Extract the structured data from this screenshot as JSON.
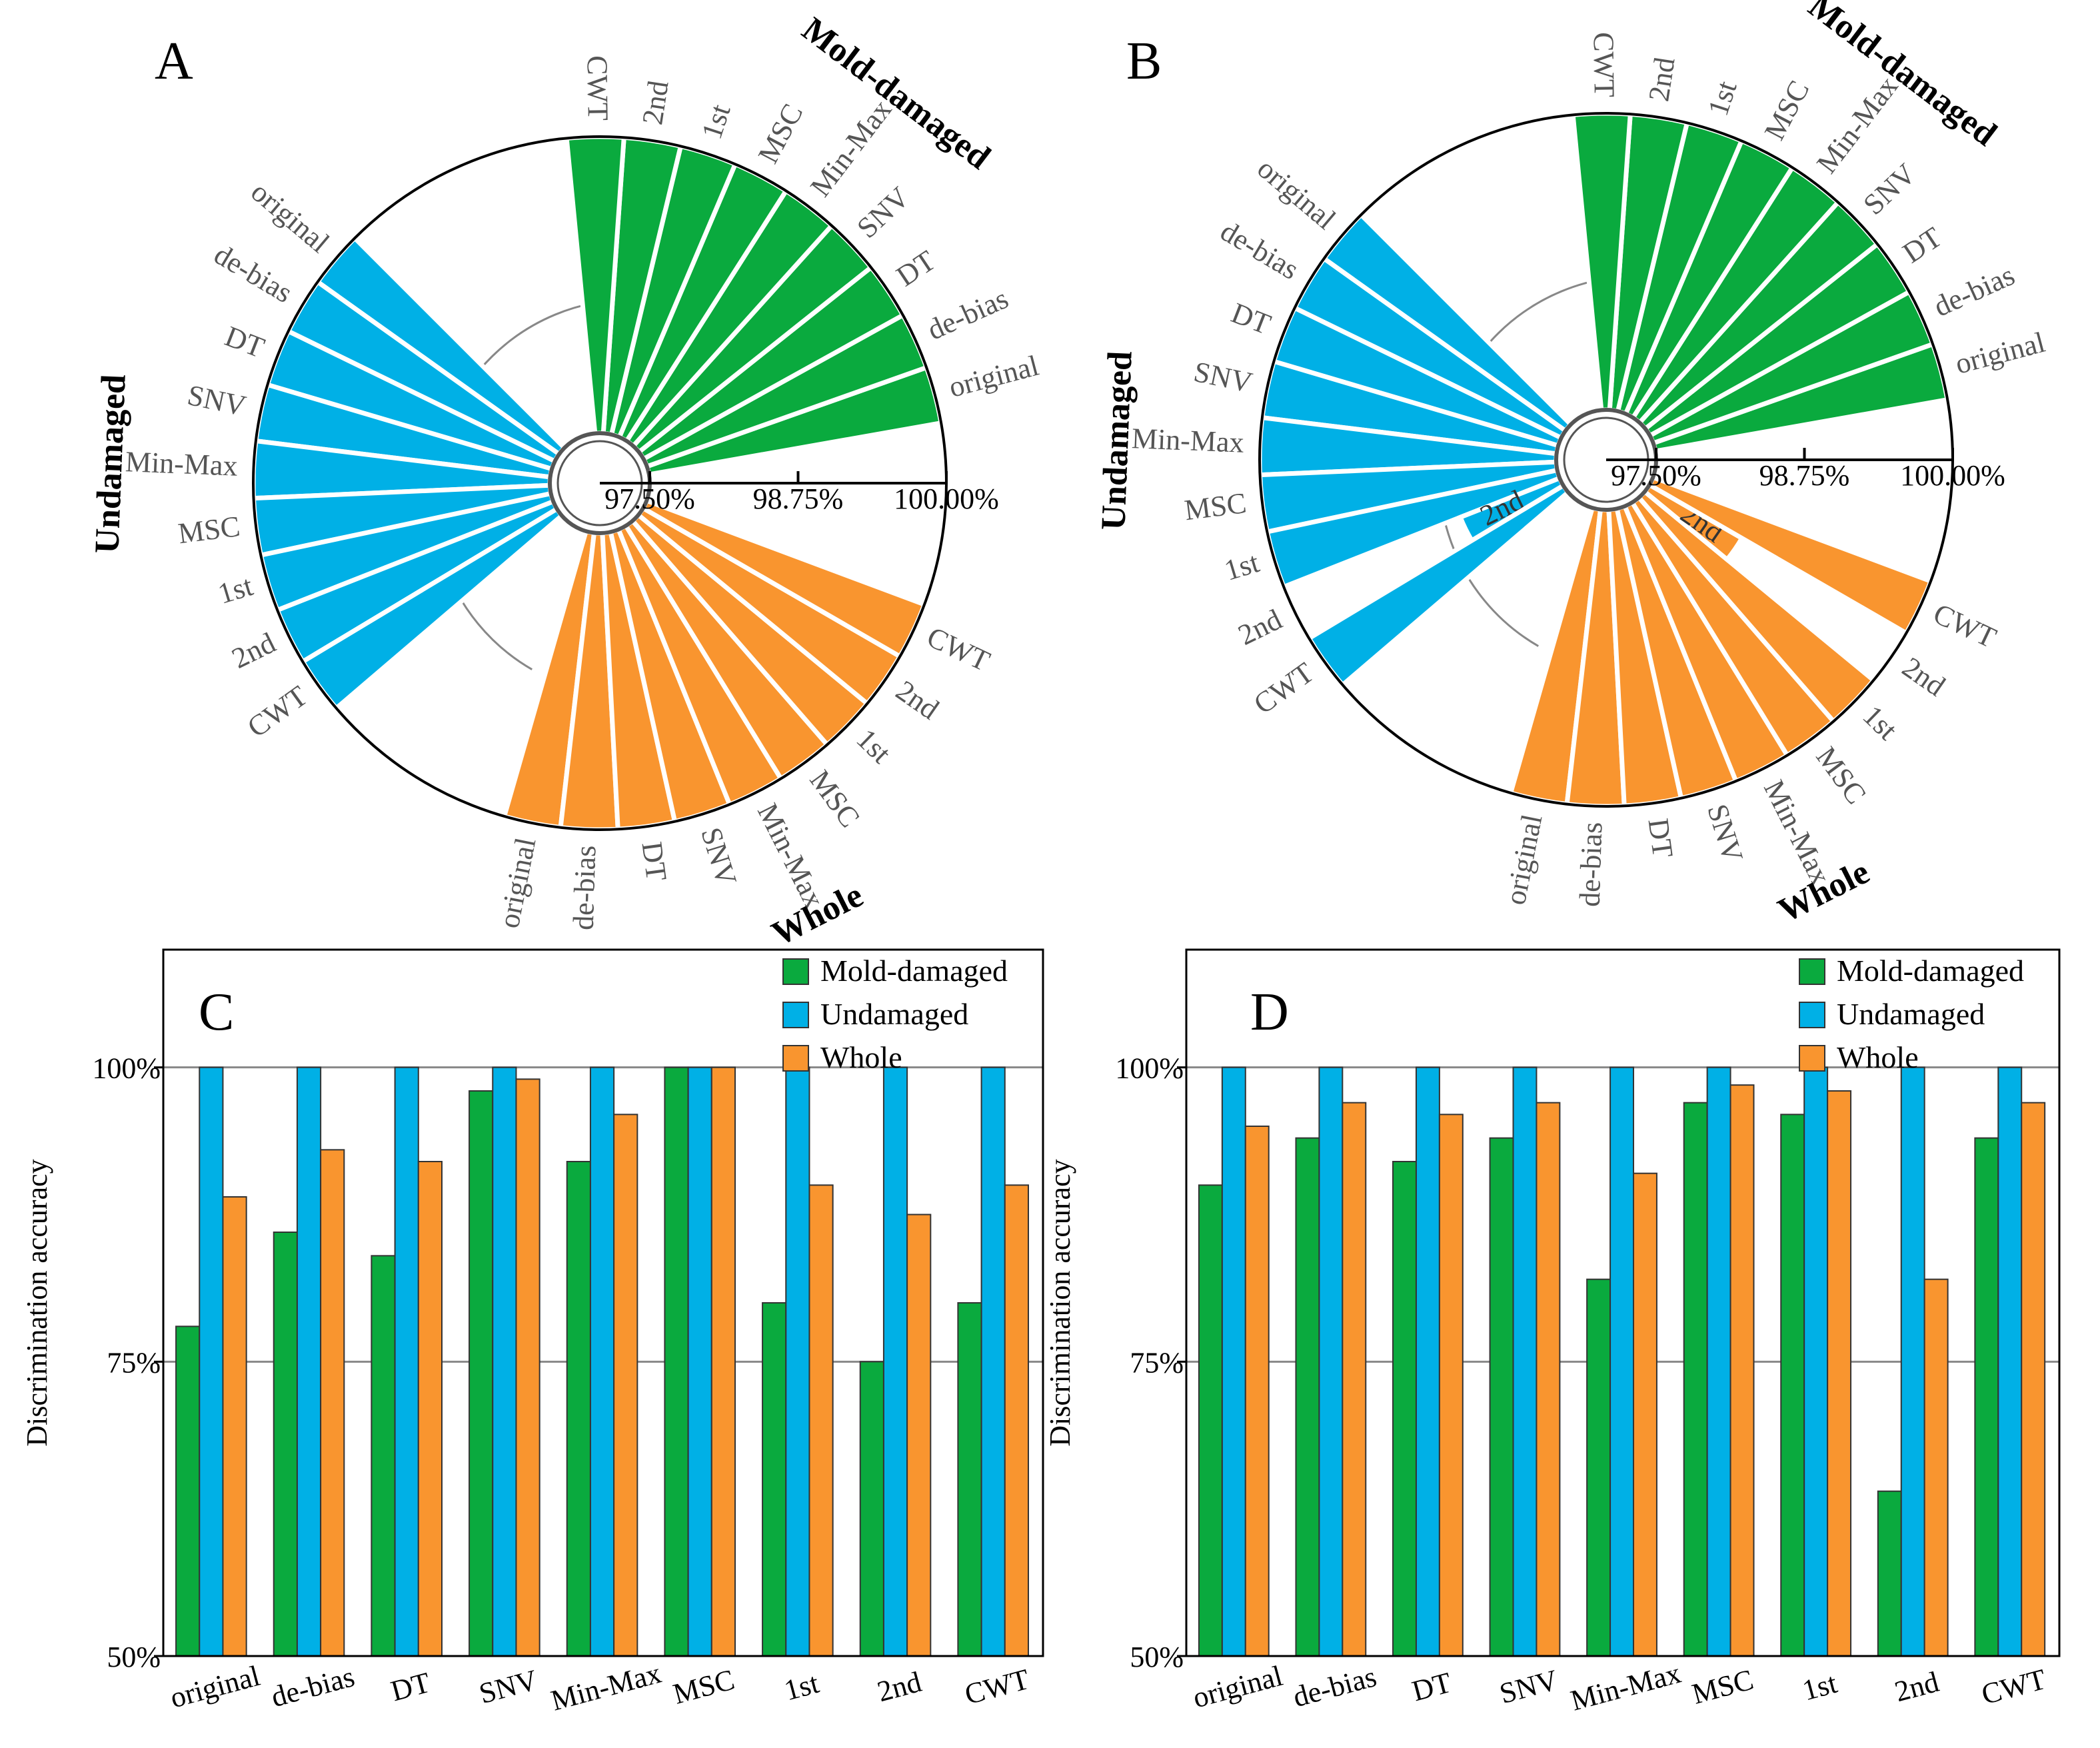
{
  "figure": {
    "colors": {
      "mold": "#0aaa3e",
      "undamaged": "#00b0e6",
      "whole": "#f9952f"
    }
  },
  "chart_data": [
    {
      "panel": "A",
      "type": "radial-bar",
      "groups": [
        "Mold-damaged",
        "Undamaged",
        "Whole"
      ],
      "categories": [
        "original",
        "de-bias",
        "DT",
        "SNV",
        "Min-Max",
        "MSC",
        "1st",
        "2nd",
        "CWT"
      ],
      "radial_axis": {
        "min": 97.5,
        "max": 100,
        "ticks": [
          "97.50%",
          "98.75%",
          "100.00%"
        ]
      },
      "series": [
        {
          "name": "Mold-damaged",
          "values": [
            100,
            100,
            100,
            100,
            100,
            100,
            100,
            100,
            100
          ]
        },
        {
          "name": "Undamaged",
          "values": [
            100,
            100,
            100,
            100,
            100,
            100,
            100,
            100,
            100
          ]
        },
        {
          "name": "Whole",
          "values": [
            100,
            100,
            100,
            100,
            100,
            100,
            100,
            100,
            100
          ]
        }
      ]
    },
    {
      "panel": "B",
      "type": "radial-bar",
      "groups": [
        "Mold-damaged",
        "Undamaged",
        "Whole"
      ],
      "categories": [
        "original",
        "de-bias",
        "DT",
        "SNV",
        "Min-Max",
        "MSC",
        "1st",
        "2nd",
        "CWT"
      ],
      "radial_axis": {
        "min": 97.5,
        "max": 100,
        "ticks": [
          "97.50%",
          "98.75%",
          "100.00%"
        ]
      },
      "series": [
        {
          "name": "Mold-damaged",
          "values": [
            100,
            100,
            100,
            100,
            100,
            100,
            100,
            100,
            100
          ]
        },
        {
          "name": "Undamaged",
          "values": [
            100,
            100,
            100,
            100,
            100,
            100,
            100,
            98.4,
            100
          ]
        },
        {
          "name": "Whole",
          "values": [
            100,
            100,
            100,
            100,
            100,
            100,
            100,
            98.4,
            100
          ]
        }
      ]
    },
    {
      "panel": "C",
      "type": "bar",
      "categories": [
        "original",
        "de-bias",
        "DT",
        "SNV",
        "Min-Max",
        "MSC",
        "1st",
        "2nd",
        "CWT"
      ],
      "ylabel": "Discrimination accuracy",
      "ylim": [
        50,
        110
      ],
      "yticks": [
        50,
        75,
        100
      ],
      "ytick_labels": [
        "50%",
        "75%",
        "100%"
      ],
      "legend": "top-right",
      "series": [
        {
          "name": "Mold-damaged",
          "values": [
            78,
            86,
            84,
            98,
            92,
            100,
            80,
            75,
            80
          ]
        },
        {
          "name": "Undamaged",
          "values": [
            100,
            100,
            100,
            100,
            100,
            100,
            100,
            100,
            100
          ]
        },
        {
          "name": "Whole",
          "values": [
            89,
            93,
            92,
            99,
            96,
            100,
            90,
            87.5,
            90
          ]
        }
      ]
    },
    {
      "panel": "D",
      "type": "bar",
      "categories": [
        "original",
        "de-bias",
        "DT",
        "SNV",
        "Min-Max",
        "MSC",
        "1st",
        "2nd",
        "CWT"
      ],
      "ylabel": "Discrimination accuracy",
      "ylim": [
        50,
        110
      ],
      "yticks": [
        50,
        75,
        100
      ],
      "ytick_labels": [
        "50%",
        "75%",
        "100%"
      ],
      "legend": "top-right",
      "series": [
        {
          "name": "Mold-damaged",
          "values": [
            90,
            94,
            92,
            94,
            82,
            97,
            96,
            64,
            94
          ]
        },
        {
          "name": "Undamaged",
          "values": [
            100,
            100,
            100,
            100,
            100,
            100,
            100,
            100,
            100
          ]
        },
        {
          "name": "Whole",
          "values": [
            95,
            97,
            96,
            97,
            91,
            98.5,
            98,
            82,
            97
          ]
        }
      ]
    }
  ]
}
